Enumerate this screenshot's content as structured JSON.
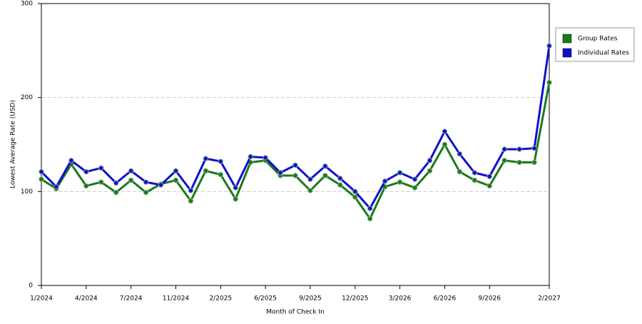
{
  "chart_data": {
    "type": "line",
    "y_label": "Lowest Average Rate (USD)",
    "x_label": "Month of Check In",
    "categories": [
      "1/2024",
      null,
      null,
      "4/2024",
      null,
      null,
      "7/2024",
      null,
      null,
      "11/2024",
      null,
      null,
      "2/2025",
      null,
      null,
      "6/2025",
      null,
      null,
      "9/2025",
      null,
      null,
      "12/2025",
      null,
      null,
      "3/2026",
      null,
      null,
      "6/2026",
      null,
      null,
      "9/2026",
      null,
      null,
      null,
      "2/2027"
    ],
    "series": [
      {
        "name": "Group Rates",
        "color": "#1a7a1a",
        "values": [
          113,
          103,
          129,
          106,
          110,
          99,
          112,
          99,
          108,
          112,
          90,
          122,
          118,
          92,
          131,
          133,
          117,
          117,
          101,
          117,
          107,
          94,
          71,
          105,
          110,
          104,
          122,
          150,
          121,
          112,
          106,
          133,
          131,
          131,
          216
        ]
      },
      {
        "name": "Individual Rates",
        "color": "#1010cc",
        "values": [
          121,
          105,
          133,
          121,
          125,
          109,
          122,
          110,
          107,
          122,
          101,
          135,
          132,
          104,
          137,
          136,
          120,
          128,
          113,
          127,
          114,
          100,
          82,
          111,
          120,
          113,
          133,
          164,
          140,
          120,
          116,
          145,
          145,
          146,
          255
        ]
      }
    ],
    "ylim": [
      0,
      300
    ],
    "yticks": [
      0,
      100,
      200,
      300
    ],
    "grid": true,
    "legend": "right"
  }
}
